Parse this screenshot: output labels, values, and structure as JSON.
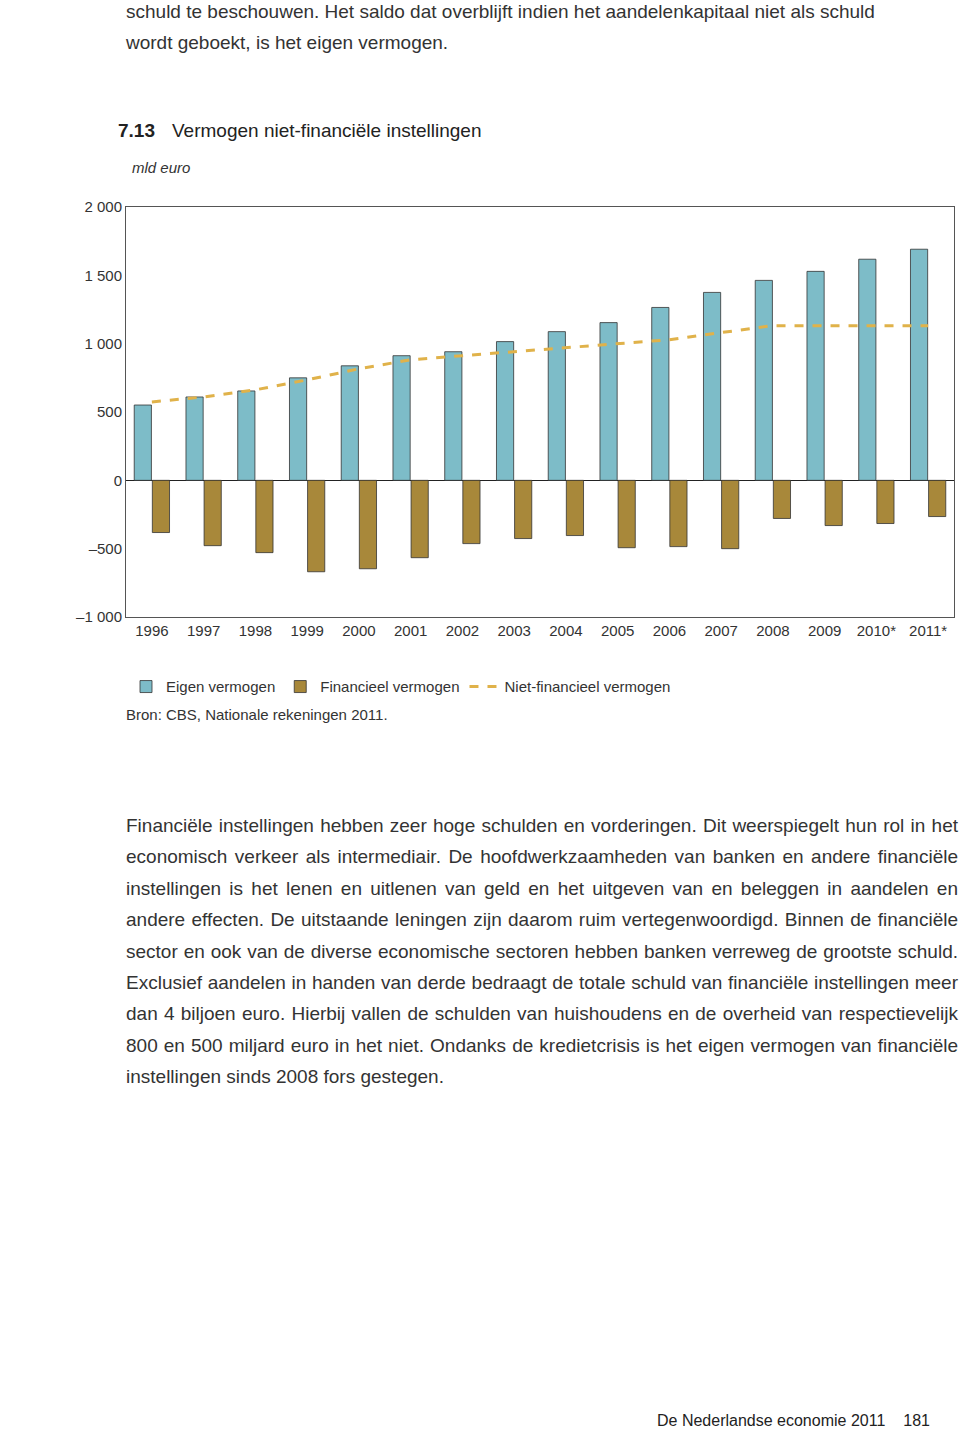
{
  "document": {
    "intro": [
      "schuld te beschouwen. Het saldo dat overblijft indien het aandelenkapitaal niet als schuld",
      "wordt geboekt, is het eigen vermogen."
    ],
    "figure_number": "7.13",
    "source": "Bron: CBS, Nationale rekeningen 2011.",
    "body": "Financiële instellingen hebben zeer hoge schulden en vorderingen. Dit weerspiegelt hun rol in het economisch verkeer als intermediair. De hoofdwerkzaamheden van banken en andere financiële instellingen is het lenen en uitlenen van geld en het uitgeven van en beleggen in aandelen en andere effecten. De uitstaande leningen zijn daarom ruim vertegenwoordigd. Binnen de financiële sector en ook van de diverse economische sectoren hebben banken verreweg de grootste schuld. Exclusief aandelen in handen van derde bedraagt de totale schuld van financiële instellingen meer dan 4 biljoen euro. Hierbij vallen de schulden van huishoudens en de overheid van respectievelijk 800 en 500 miljard euro in het niet. Ondanks de kredietcrisis is het eigen vermogen van financiële instellingen sinds 2008 fors gestegen.",
    "footer": "De Nederlandse economie 2011",
    "page_number": "181"
  },
  "chart_data": {
    "type": "bar",
    "title": "Vermogen niet-financiële instellingen",
    "y_label": "mld euro",
    "categories": [
      "1996",
      "1997",
      "1998",
      "1999",
      "2000",
      "2001",
      "2002",
      "2003",
      "2004",
      "2005",
      "2006",
      "2007",
      "2008",
      "2009",
      "2010*",
      "2011*"
    ],
    "series": [
      {
        "name": "Eigen vermogen",
        "type": "bar",
        "color": "#7dbcc8",
        "values": [
          551,
          610,
          654,
          750,
          838,
          912,
          941,
          1015,
          1088,
          1154,
          1265,
          1375,
          1463,
          1529,
          1618,
          1691
        ]
      },
      {
        "name": "Financieel vermogen",
        "type": "bar",
        "color": "#a8883a",
        "values": [
          -382,
          -478,
          -529,
          -669,
          -647,
          -566,
          -463,
          -426,
          -404,
          -493,
          -485,
          -500,
          -279,
          -331,
          -316,
          -265
        ]
      },
      {
        "name": "Niet-financieel vermogen",
        "type": "line",
        "color": "#e0b24a",
        "line_style": "dashed",
        "values": [
          574,
          610,
          662,
          735,
          816,
          882,
          912,
          941,
          971,
          1000,
          1029,
          1081,
          1132,
          1132,
          1132,
          1132
        ]
      }
    ],
    "ylim": [
      -1000,
      2000
    ],
    "yticks": [
      {
        "value": -1000,
        "label": "–1 000"
      },
      {
        "value": -500,
        "label": "–500"
      },
      0,
      500,
      {
        "value": 1000,
        "label": "1 000"
      },
      {
        "value": 1500,
        "label": "1 500"
      },
      {
        "value": 2000,
        "label": "2 000"
      }
    ],
    "grid": false,
    "legend": "bottom"
  }
}
